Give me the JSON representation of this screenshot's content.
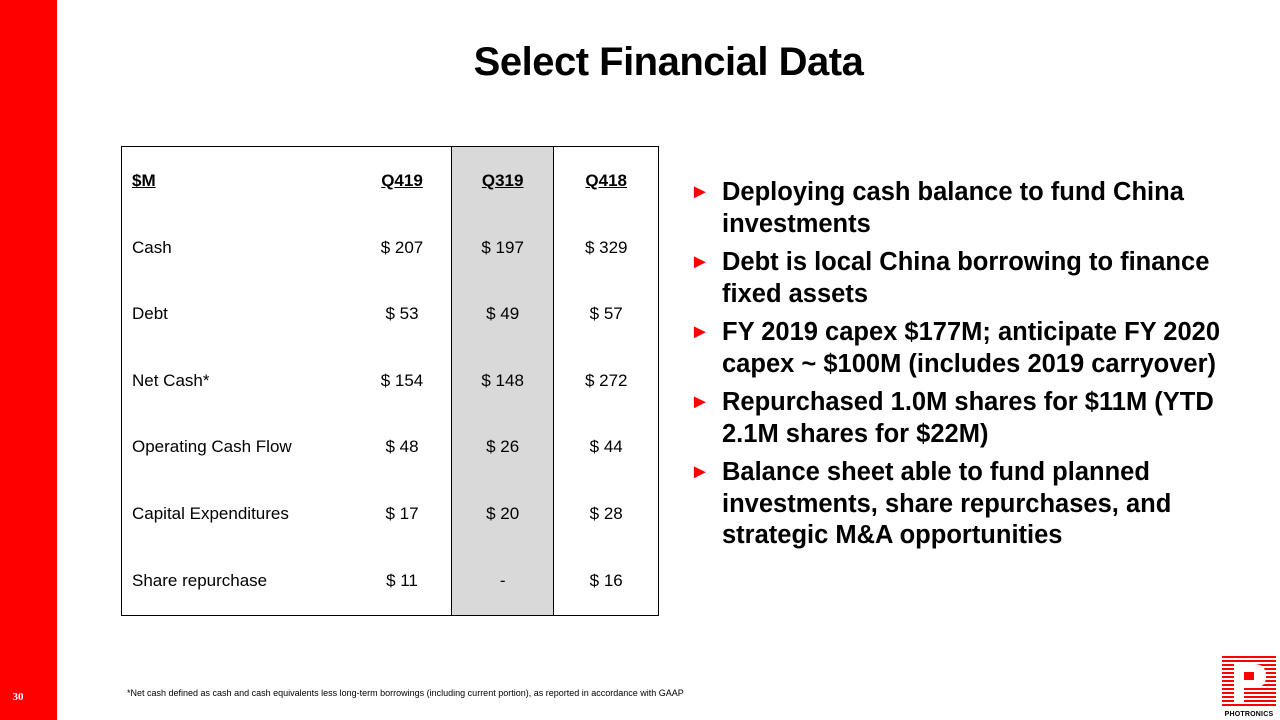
{
  "slide": {
    "title": "Select Financial Data",
    "page_number": "30",
    "footnote": "*Net cash defined as cash and cash equivalents less long-term borrowings (including current portion), as reported in accordance with GAAP"
  },
  "table": {
    "headers": [
      "$M",
      "Q419",
      "Q319",
      "Q418"
    ],
    "rows": [
      [
        "Cash",
        "$ 207",
        "$ 197",
        "$ 329"
      ],
      [
        "Debt",
        "$ 53",
        "$ 49",
        "$ 57"
      ],
      [
        "Net Cash*",
        "$ 154",
        "$ 148",
        "$ 272"
      ],
      [
        "Operating Cash Flow",
        "$ 48",
        "$ 26",
        "$ 44"
      ],
      [
        "Capital Expenditures",
        "$ 17",
        "$ 20",
        "$ 28"
      ],
      [
        "Share repurchase",
        "$ 11",
        "-",
        "$ 16"
      ]
    ],
    "highlight_color": "#d9d9d9"
  },
  "bullets": [
    "Deploying cash balance to fund China investments",
    "Debt is local China borrowing to finance fixed assets",
    "FY 2019 capex $177M; anticipate FY 2020 capex ~ $100M (includes 2019 carryover)",
    "Repurchased 1.0M shares for $11M (YTD 2.1M shares for $22M)",
    "Balance sheet able to fund planned investments, share repurchases, and strategic M&A opportunities"
  ],
  "bullet_marker": "►",
  "logo": {
    "text": "PHOTRONICS",
    "icon": "photronics-logo-icon"
  },
  "colors": {
    "accent": "#ff0000",
    "table_highlight": "#d9d9d9"
  }
}
